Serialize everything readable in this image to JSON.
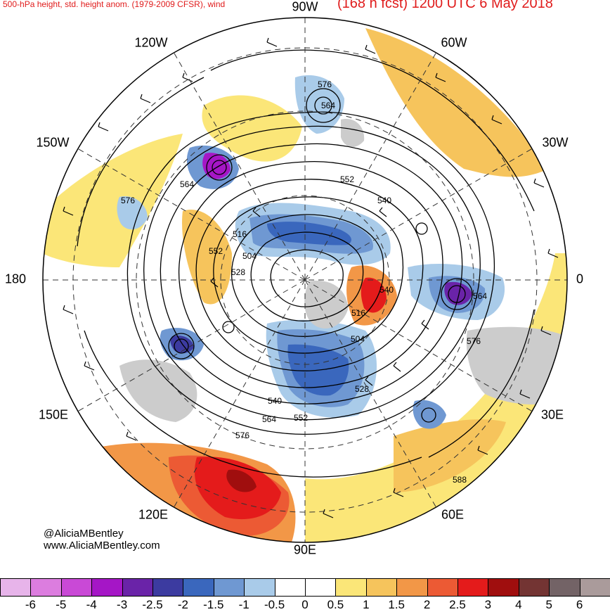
{
  "header": {
    "left_title": "500-hPa height, std. height anom. (1979-2009 CFSR), wind",
    "right_title": "(168 h fcst) 1200 UTC 6 May 2018"
  },
  "credits": {
    "handle": "@AliciaMBentley",
    "website": "www.AliciaMBentley.com"
  },
  "longitude_labels": [
    "90W",
    "60W",
    "30W",
    "0",
    "30E",
    "60E",
    "90E",
    "120E",
    "150E",
    "180",
    "150W",
    "120W"
  ],
  "contour_labels": [
    "576",
    "564",
    "552",
    "540",
    "576",
    "564",
    "516",
    "552",
    "504",
    "528",
    "540",
    "516",
    "564",
    "576",
    "504",
    "528",
    "540",
    "564",
    "552",
    "576",
    "588"
  ],
  "colorbar": {
    "ticks": [
      "-6",
      "-5",
      "-4",
      "-3",
      "-2.5",
      "-2",
      "-1.5",
      "-1",
      "-0.5",
      "0",
      "0.5",
      "1",
      "1.5",
      "2",
      "2.5",
      "3",
      "4",
      "5",
      "6"
    ],
    "colors": [
      "#e7b4ea",
      "#dc7ddf",
      "#c949d6",
      "#a516c6",
      "#6a23a8",
      "#3c3ba0",
      "#3a67bd",
      "#6f98d2",
      "#a9cbe9",
      "#ffffff",
      "#ffffff",
      "#fbe678",
      "#f6c45c",
      "#f29747",
      "#ec5a34",
      "#e41b1b",
      "#a00e0e",
      "#733433",
      "#736366",
      "#aa9b9b"
    ]
  },
  "map": {
    "ocean_color": "#ffffff",
    "land_color": "#cccccc",
    "positive_anomaly_colors": [
      "#fbe678",
      "#f6c45c",
      "#f29747",
      "#ec5a34",
      "#e41b1b",
      "#a00e0e"
    ],
    "negative_anomaly_colors": [
      "#a9cbe9",
      "#6f98d2",
      "#3a67bd",
      "#3c3ba0",
      "#a516c6"
    ]
  }
}
